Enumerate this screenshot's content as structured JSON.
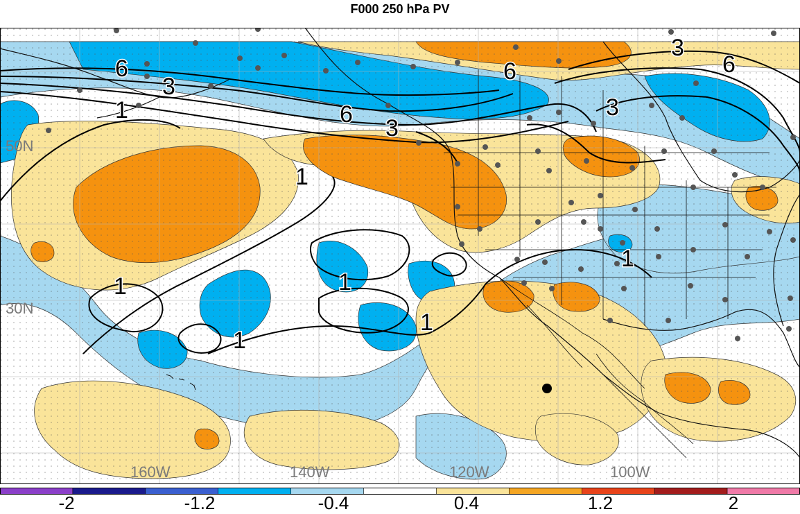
{
  "title": "F000 250 hPa PV",
  "map": {
    "lat_labels": [
      "50N",
      "30N"
    ],
    "lon_labels": [
      "160W",
      "140W",
      "120W",
      "100W"
    ],
    "contour_labels": [
      "6",
      "3",
      "6",
      "3",
      "6",
      "3",
      "6",
      "3",
      "1",
      "1",
      "1",
      "1",
      "1",
      "1",
      "1"
    ],
    "colors": {
      "strong_neg": "#00b0f0",
      "weak_neg": "#a6d8f0",
      "weak_pos": "#fae49a",
      "strong_pos": "#f5920f",
      "neutral": "#ffffff"
    }
  },
  "colorbar": {
    "colors": [
      "#8b3fc9",
      "#1a1a8c",
      "#3a5fd0",
      "#00b0f0",
      "#a6d8f0",
      "#ffffff",
      "#fae49a",
      "#f5a623",
      "#e8431a",
      "#a31c1c",
      "#f07aa8"
    ],
    "labels": [
      "-2",
      "-1.2",
      "-0.4",
      "0.4",
      "1.2",
      "2"
    ]
  }
}
